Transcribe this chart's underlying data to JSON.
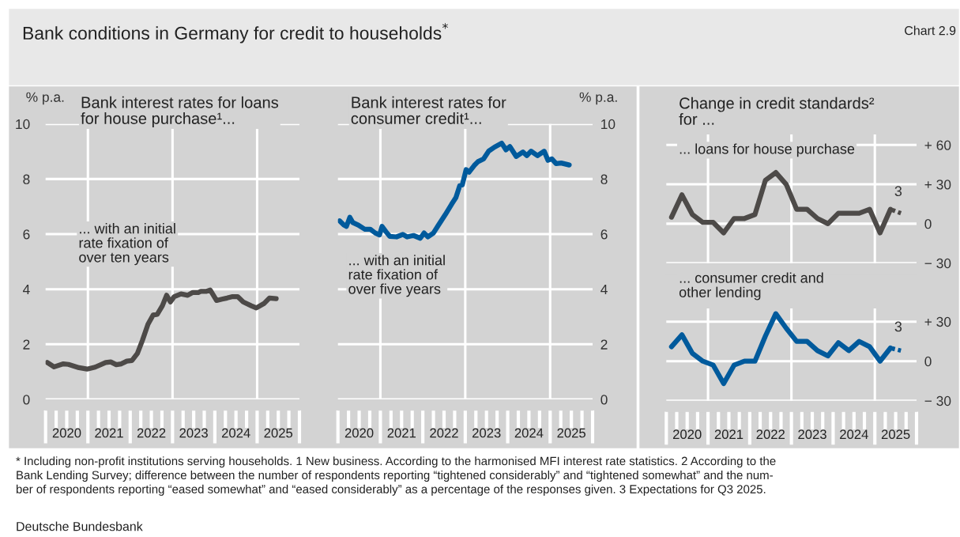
{
  "chart_data": [
    {
      "type": "other",
      "title": "Bank conditions in Germany for credit to households$^{*}$",
      "annotations": [
        "Chart 2.9",
        "* Including non-profit institutions serving households. 1 New business. According to the harmonised MFI interest rate statistics. 2 According to the\nBank Lending Survey; difference between the number of respondents reporting “tightened considerably” and “tightened somewhat” and the num-\nber of respondents reporting “eased somewhat” and “eased considerably” as a percentage of the responses given. 3 Expectations for Q3 2025.",
        "Deutsche Bundesbank"
      ]
    },
    {
      "type": "line",
      "title": "Bank interest rates for loans\nfor house purchase¹...",
      "ylabel": "% p.a.",
      "xlim": [
        2020,
        2026
      ],
      "ylim": [
        0,
        10
      ],
      "yticks": [
        0,
        2,
        4,
        6,
        8,
        10
      ],
      "xticks": [
        {
          "value": 2020.5,
          "label": "2020"
        },
        {
          "value": 2021.5,
          "label": "2021"
        },
        {
          "value": 2022.5,
          "label": "2022"
        },
        {
          "value": 2023.5,
          "label": "2023"
        },
        {
          "value": 2024.5,
          "label": "2024"
        },
        {
          "value": 2025.5,
          "label": "2025"
        }
      ],
      "grid": "y",
      "legend": false,
      "ref_lines": [
        {
          "axis": "x",
          "value": 2021,
          "color": "#ffffff"
        },
        {
          "axis": "x",
          "value": 2023,
          "color": "#ffffff"
        },
        {
          "axis": "x",
          "value": 2025,
          "color": "#ffffff"
        }
      ],
      "series": [
        {
          "name": "... with an initial\nrate fixation of\nover ten years",
          "color": "#4d4a48",
          "x": [
            2020.04,
            2020.2,
            2020.42,
            2020.54,
            2020.79,
            2020.98,
            2021.17,
            2021.42,
            2021.54,
            2021.67,
            2021.79,
            2021.92,
            2022.04,
            2022.17,
            2022.29,
            2022.42,
            2022.54,
            2022.64,
            2022.76,
            2022.86,
            2022.95,
            2023.04,
            2023.2,
            2023.36,
            2023.48,
            2023.61,
            2023.67,
            2023.79,
            2023.89,
            2024.04,
            2024.17,
            2024.29,
            2024.42,
            2024.54,
            2024.67,
            2024.86,
            2024.98,
            2025.17,
            2025.29,
            2025.45
          ],
          "values": [
            1.34,
            1.18,
            1.29,
            1.27,
            1.15,
            1.1,
            1.17,
            1.34,
            1.36,
            1.26,
            1.29,
            1.39,
            1.41,
            1.67,
            2.15,
            2.73,
            3.06,
            3.09,
            3.4,
            3.78,
            3.54,
            3.73,
            3.83,
            3.78,
            3.88,
            3.88,
            3.92,
            3.92,
            3.97,
            3.59,
            3.64,
            3.68,
            3.73,
            3.73,
            3.54,
            3.4,
            3.32,
            3.49,
            3.68,
            3.66
          ]
        }
      ]
    },
    {
      "type": "line",
      "title": "Bank interest rates for\nconsumer credit¹...",
      "ylabel": "% p.a.",
      "xlim": [
        2020,
        2026
      ],
      "ylim": [
        0,
        10
      ],
      "yticks": [
        0,
        2,
        4,
        6,
        8,
        10
      ],
      "xticks": [
        {
          "value": 2020.5,
          "label": "2020"
        },
        {
          "value": 2021.5,
          "label": "2021"
        },
        {
          "value": 2022.5,
          "label": "2022"
        },
        {
          "value": 2023.5,
          "label": "2023"
        },
        {
          "value": 2024.5,
          "label": "2024"
        },
        {
          "value": 2025.5,
          "label": "2025"
        }
      ],
      "grid": "y",
      "legend": false,
      "ref_lines": [
        {
          "axis": "x",
          "value": 2021,
          "color": "#ffffff"
        },
        {
          "axis": "x",
          "value": 2023,
          "color": "#ffffff"
        },
        {
          "axis": "x",
          "value": 2025,
          "color": "#ffffff"
        }
      ],
      "series": [
        {
          "name": "... with an initial\nrate fixation of\nover five years",
          "color": "#005a9c",
          "x": [
            2020.04,
            2020.14,
            2020.2,
            2020.28,
            2020.35,
            2020.48,
            2020.63,
            2020.76,
            2020.88,
            2020.98,
            2021.04,
            2021.13,
            2021.22,
            2021.38,
            2021.53,
            2021.63,
            2021.78,
            2021.94,
            2022.03,
            2022.12,
            2022.25,
            2022.37,
            2022.53,
            2022.68,
            2022.78,
            2022.87,
            2022.93,
            2023.02,
            2023.09,
            2023.21,
            2023.3,
            2023.43,
            2023.55,
            2023.69,
            2023.86,
            2023.96,
            2024.05,
            2024.2,
            2024.36,
            2024.45,
            2024.55,
            2024.7,
            2024.86,
            2024.95,
            2025.04,
            2025.14,
            2025.26,
            2025.45
          ],
          "values": [
            6.48,
            6.33,
            6.28,
            6.61,
            6.42,
            6.33,
            6.18,
            6.18,
            6.04,
            5.97,
            6.28,
            6.09,
            5.92,
            5.9,
            5.99,
            5.9,
            5.95,
            5.85,
            6.04,
            5.9,
            6.04,
            6.33,
            6.71,
            7.09,
            7.33,
            7.76,
            7.79,
            8.34,
            8.25,
            8.49,
            8.63,
            8.73,
            9.01,
            9.16,
            9.3,
            9.06,
            9.18,
            8.82,
            8.98,
            8.85,
            9.01,
            8.85,
            9.01,
            8.68,
            8.73,
            8.56,
            8.58,
            8.51
          ]
        }
      ]
    },
    {
      "type": "line",
      "title": "Change in credit standards²\nfor ...",
      "xlim": [
        2020,
        2026
      ],
      "ylim": [
        -30,
        68
      ],
      "tick_labels": "y",
      "yticks": [
        {
          "value": 60,
          "label": "+ 60"
        },
        {
          "value": 30,
          "label": "+ 30"
        },
        0,
        {
          "value": -30,
          "label": "− 30"
        }
      ],
      "grid": "y",
      "legend": false,
      "ref_lines": [
        {
          "axis": "x",
          "value": 2021,
          "color": "#ffffff"
        },
        {
          "axis": "x",
          "value": 2023,
          "color": "#ffffff"
        },
        {
          "axis": "x",
          "value": 2025,
          "color": "#ffffff"
        }
      ],
      "annotations": [
        "3"
      ],
      "series": [
        {
          "name": "... loans for house purchase",
          "color": "#4d4a48",
          "x": [
            2020.125,
            2020.375,
            2020.625,
            2020.875,
            2021.125,
            2021.375,
            2021.625,
            2021.875,
            2022.125,
            2022.375,
            2022.625,
            2022.875,
            2023.125,
            2023.375,
            2023.625,
            2023.875,
            2024.125,
            2024.375,
            2024.625,
            2024.875,
            2025.125,
            2025.375
          ],
          "values": [
            5,
            22,
            7,
            1,
            1,
            -7,
            4,
            4,
            7,
            33,
            39,
            30,
            11,
            11,
            4,
            0,
            8,
            8,
            8,
            11,
            -7,
            11
          ]
        },
        {
          "color": "#4d4a48",
          "line_style": "dotted",
          "x": [
            2025.375,
            2025.625
          ],
          "values": [
            11,
            8
          ]
        }
      ]
    },
    {
      "type": "line",
      "xlim": [
        2020,
        2026
      ],
      "ylim": [
        -30,
        40
      ],
      "yticks": [
        {
          "value": 30,
          "label": "+ 30"
        },
        0,
        {
          "value": -30,
          "label": "− 30"
        }
      ],
      "xticks": [
        {
          "value": 2020.5,
          "label": "2020"
        },
        {
          "value": 2021.5,
          "label": "2021"
        },
        {
          "value": 2022.5,
          "label": "2022"
        },
        {
          "value": 2023.5,
          "label": "2023"
        },
        {
          "value": 2024.5,
          "label": "2024"
        },
        {
          "value": 2025.5,
          "label": "2025"
        }
      ],
      "grid": "y",
      "legend": false,
      "ref_lines": [
        {
          "axis": "x",
          "value": 2021,
          "color": "#ffffff"
        },
        {
          "axis": "x",
          "value": 2023,
          "color": "#ffffff"
        },
        {
          "axis": "x",
          "value": 2025,
          "color": "#ffffff"
        }
      ],
      "annotations": [
        "3"
      ],
      "series": [
        {
          "name": "... consumer credit and\nother lending",
          "color": "#005a9c",
          "x": [
            2020.125,
            2020.375,
            2020.625,
            2020.875,
            2021.125,
            2021.375,
            2021.625,
            2021.875,
            2022.125,
            2022.375,
            2022.625,
            2022.875,
            2023.125,
            2023.375,
            2023.625,
            2023.875,
            2024.125,
            2024.375,
            2024.625,
            2024.875,
            2025.125,
            2025.375
          ],
          "values": [
            11,
            20,
            6,
            0,
            -3,
            -17,
            -3,
            0,
            0,
            19,
            36,
            25,
            15,
            15,
            8,
            4,
            14,
            8,
            15,
            11,
            0,
            10
          ]
        },
        {
          "color": "#005a9c",
          "line_style": "dotted",
          "x": [
            2025.375,
            2025.625
          ],
          "values": [
            10,
            8
          ]
        }
      ]
    }
  ]
}
